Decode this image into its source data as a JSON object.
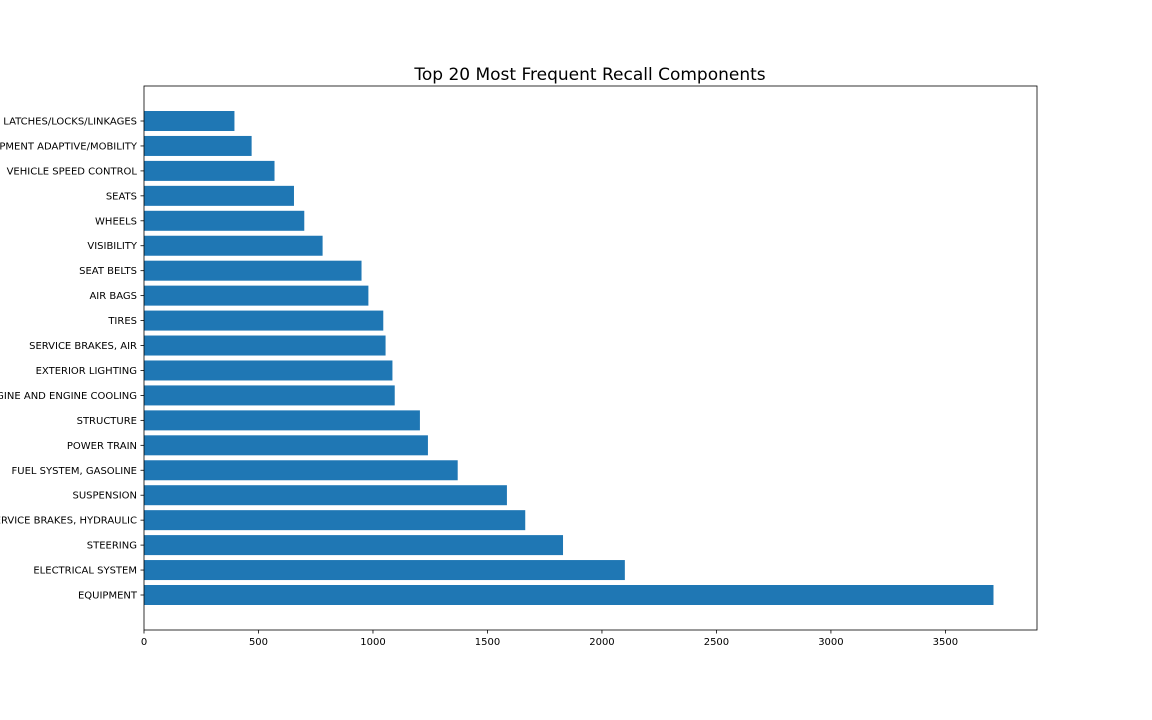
{
  "chart_data": {
    "type": "bar",
    "orientation": "horizontal",
    "title": "Top 20 Most Frequent Recall Components",
    "xlabel": "",
    "ylabel": "",
    "xlim": [
      0,
      3900
    ],
    "x_ticks": [
      0,
      500,
      1000,
      1500,
      2000,
      2500,
      3000,
      3500
    ],
    "x_tick_labels": [
      "0",
      "500",
      "1000",
      "1500",
      "2000",
      "2500",
      "3000",
      "3500"
    ],
    "grid": false,
    "bar_color": "#1f77b4",
    "categories": [
      "EQUIPMENT",
      "ELECTRICAL SYSTEM",
      "STEERING",
      "SERVICE BRAKES, HYDRAULIC",
      "SUSPENSION",
      "FUEL SYSTEM, GASOLINE",
      "POWER TRAIN",
      "STRUCTURE",
      "ENGINE AND ENGINE COOLING",
      "EXTERIOR LIGHTING",
      "SERVICE BRAKES, AIR",
      "TIRES",
      "AIR BAGS",
      "SEAT BELTS",
      "VISIBILITY",
      "WHEELS",
      "SEATS",
      "VEHICLE SPEED CONTROL",
      "EQUIPMENT ADAPTIVE/MOBILITY",
      "LATCHES/LOCKS/LINKAGES"
    ],
    "values": [
      3710,
      2100,
      1830,
      1665,
      1585,
      1370,
      1240,
      1205,
      1095,
      1085,
      1055,
      1045,
      980,
      950,
      780,
      700,
      655,
      570,
      470,
      395
    ]
  }
}
